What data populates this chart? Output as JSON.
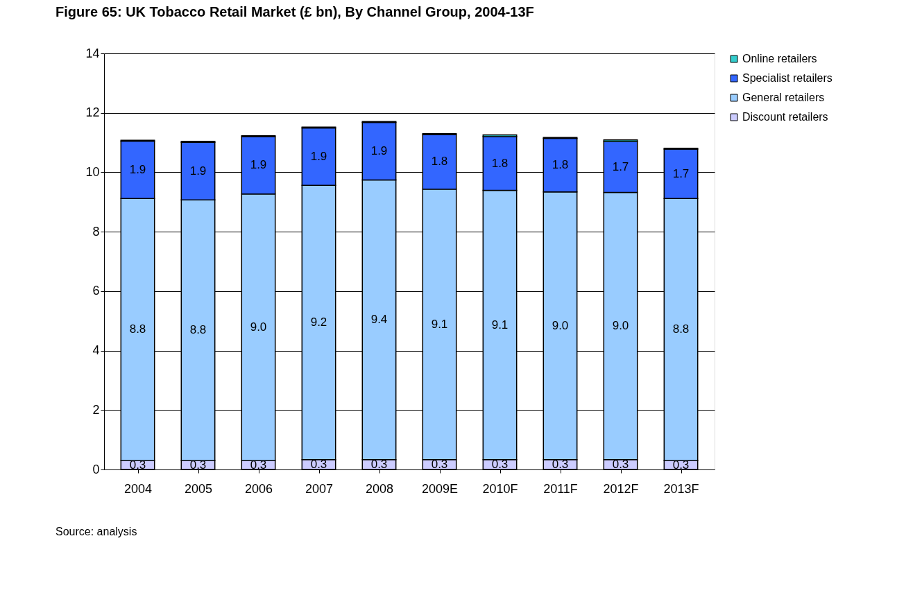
{
  "chart_data": {
    "type": "bar",
    "title": "Figure 65: UK Tobacco Retail Market (£ bn), By Channel Group, 2004-13F",
    "categories": [
      "2004",
      "2005",
      "2006",
      "2007",
      "2008",
      "2009E",
      "2010F",
      "2011F",
      "2012F",
      "2013F"
    ],
    "stacked": true,
    "series": [
      {
        "name": "Discount retailers",
        "color": "#ccccff",
        "values": [
          0.3,
          0.3,
          0.3,
          0.33,
          0.33,
          0.33,
          0.33,
          0.33,
          0.33,
          0.3
        ],
        "value_labels": [
          "0.3",
          "0.3",
          "0.3",
          "0.3",
          "0.3",
          "0.3",
          "0.3",
          "0.3",
          "0.3",
          "0.3"
        ]
      },
      {
        "name": "General retailers",
        "color": "#99ccff",
        "values": [
          8.82,
          8.77,
          8.97,
          9.23,
          9.41,
          9.1,
          9.06,
          9.01,
          8.99,
          8.82
        ],
        "value_labels": [
          "8.8",
          "8.8",
          "9.0",
          "9.2",
          "9.4",
          "9.1",
          "9.1",
          "9.0",
          "9.0",
          "8.8"
        ]
      },
      {
        "name": "Specialist retailers",
        "color": "#3366ff",
        "values": [
          1.93,
          1.94,
          1.93,
          1.93,
          1.94,
          1.84,
          1.81,
          1.8,
          1.71,
          1.66
        ],
        "value_labels": [
          "1.9",
          "1.9",
          "1.9",
          "1.9",
          "1.9",
          "1.8",
          "1.8",
          "1.8",
          "1.7",
          "1.7"
        ]
      },
      {
        "name": "Online retailers",
        "color": "#33cccc",
        "values": [
          0.03,
          0.03,
          0.03,
          0.03,
          0.03,
          0.03,
          0.06,
          0.03,
          0.06,
          0.03
        ]
      }
    ],
    "ylim": [
      0,
      14
    ],
    "yticks": [
      0,
      2,
      4,
      6,
      8,
      10,
      12,
      14
    ],
    "grid": "y",
    "legend": "right",
    "annotations": [
      "Source: analysis"
    ]
  }
}
